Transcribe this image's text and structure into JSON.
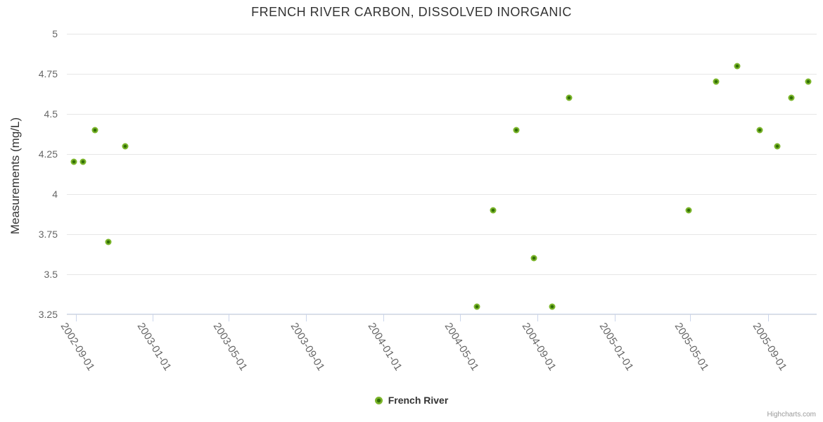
{
  "title": "FRENCH RIVER CARBON, DISSOLVED INORGANIC",
  "credits_label": "Highcharts.com",
  "legend": {
    "items": [
      {
        "label": "French River",
        "color": "#7bb52a"
      }
    ]
  },
  "colors": {
    "series": "#7bb52a",
    "marker_core": "#2f6d05",
    "gridline": "#e6e6e6",
    "axis_line": "#ccd6eb",
    "axis_label": "#666666",
    "text": "#333333",
    "credits": "#999999"
  },
  "chart_data": {
    "type": "scatter",
    "title": "FRENCH RIVER CARBON, DISSOLVED INORGANIC",
    "xlabel": "",
    "ylabel": "Measurements (mg/L)",
    "ylim": [
      3.25,
      5
    ],
    "x_range": [
      "2002-08-18",
      "2005-11-17"
    ],
    "grid": "horizontal-only",
    "legend_position": "bottom-center",
    "y_ticks": [
      {
        "value": 3.25,
        "label": "3.25"
      },
      {
        "value": 3.5,
        "label": "3.5"
      },
      {
        "value": 3.75,
        "label": "3.75"
      },
      {
        "value": 4,
        "label": "4"
      },
      {
        "value": 4.25,
        "label": "4.25"
      },
      {
        "value": 4.5,
        "label": "4.5"
      },
      {
        "value": 4.75,
        "label": "4.75"
      },
      {
        "value": 5,
        "label": "5"
      }
    ],
    "x_ticks": [
      {
        "date": "2002-09-01",
        "label": "2002-09-01"
      },
      {
        "date": "2003-01-01",
        "label": "2003-01-01"
      },
      {
        "date": "2003-05-01",
        "label": "2003-05-01"
      },
      {
        "date": "2003-09-01",
        "label": "2003-09-01"
      },
      {
        "date": "2004-01-01",
        "label": "2004-01-01"
      },
      {
        "date": "2004-05-01",
        "label": "2004-05-01"
      },
      {
        "date": "2004-09-01",
        "label": "2004-09-01"
      },
      {
        "date": "2005-01-01",
        "label": "2005-01-01"
      },
      {
        "date": "2005-05-01",
        "label": "2005-05-01"
      },
      {
        "date": "2005-09-01",
        "label": "2005-09-01"
      }
    ],
    "series": [
      {
        "name": "French River",
        "color": "#7bb52a",
        "points": [
          {
            "date": "2002-08-29",
            "value": 4.2
          },
          {
            "date": "2002-09-12",
            "value": 4.2
          },
          {
            "date": "2002-10-01",
            "value": 4.4
          },
          {
            "date": "2002-10-23",
            "value": 3.7
          },
          {
            "date": "2002-11-18",
            "value": 4.3
          },
          {
            "date": "2004-05-28",
            "value": 3.3
          },
          {
            "date": "2004-06-23",
            "value": 3.9
          },
          {
            "date": "2004-07-29",
            "value": 4.4
          },
          {
            "date": "2004-08-26",
            "value": 3.6
          },
          {
            "date": "2004-09-24",
            "value": 3.3
          },
          {
            "date": "2004-10-21",
            "value": 4.6
          },
          {
            "date": "2005-04-28",
            "value": 3.9
          },
          {
            "date": "2005-06-11",
            "value": 4.7
          },
          {
            "date": "2005-07-14",
            "value": 4.8
          },
          {
            "date": "2005-08-19",
            "value": 4.4
          },
          {
            "date": "2005-09-16",
            "value": 4.3
          },
          {
            "date": "2005-10-08",
            "value": 4.6
          },
          {
            "date": "2005-11-04",
            "value": 4.7
          }
        ]
      }
    ]
  }
}
